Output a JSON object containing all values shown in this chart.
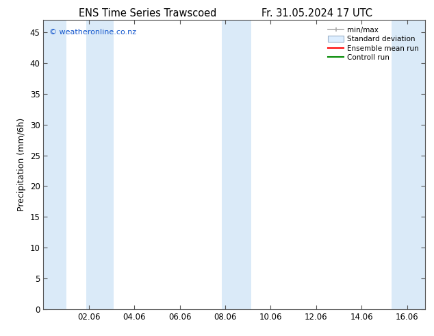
{
  "title_left": "ENS Time Series Trawscoed",
  "title_right": "Fr. 31.05.2024 17 UTC",
  "ylabel": "Precipitation (mm/6h)",
  "watermark": "© weatheronline.co.nz",
  "xtick_labels": [
    "02.06",
    "04.06",
    "06.06",
    "08.06",
    "10.06",
    "12.06",
    "14.06",
    "16.06"
  ],
  "xtick_positions": [
    2,
    4,
    6,
    8,
    10,
    12,
    14,
    16
  ],
  "xmin": 0.0,
  "xmax": 16.8,
  "ymin": 0,
  "ymax": 47,
  "ytick_positions": [
    0,
    5,
    10,
    15,
    20,
    25,
    30,
    35,
    40,
    45
  ],
  "background_color": "#ffffff",
  "plot_bg_color": "#ffffff",
  "minmax_color": "#aaaaaa",
  "stddev_fill_color": "#ddeeff",
  "ensemble_mean_color": "#ff0000",
  "control_run_color": "#008800",
  "shaded_bands": [
    {
      "x_start": 0.0,
      "x_end": 1.0
    },
    {
      "x_start": 1.9,
      "x_end": 3.1
    },
    {
      "x_start": 7.85,
      "x_end": 9.15
    },
    {
      "x_start": 15.3,
      "x_end": 16.8
    }
  ],
  "band_color": "#daeaf8",
  "legend_fontsize": 7.5,
  "title_fontsize": 10.5,
  "axis_label_fontsize": 9,
  "tick_fontsize": 8.5
}
